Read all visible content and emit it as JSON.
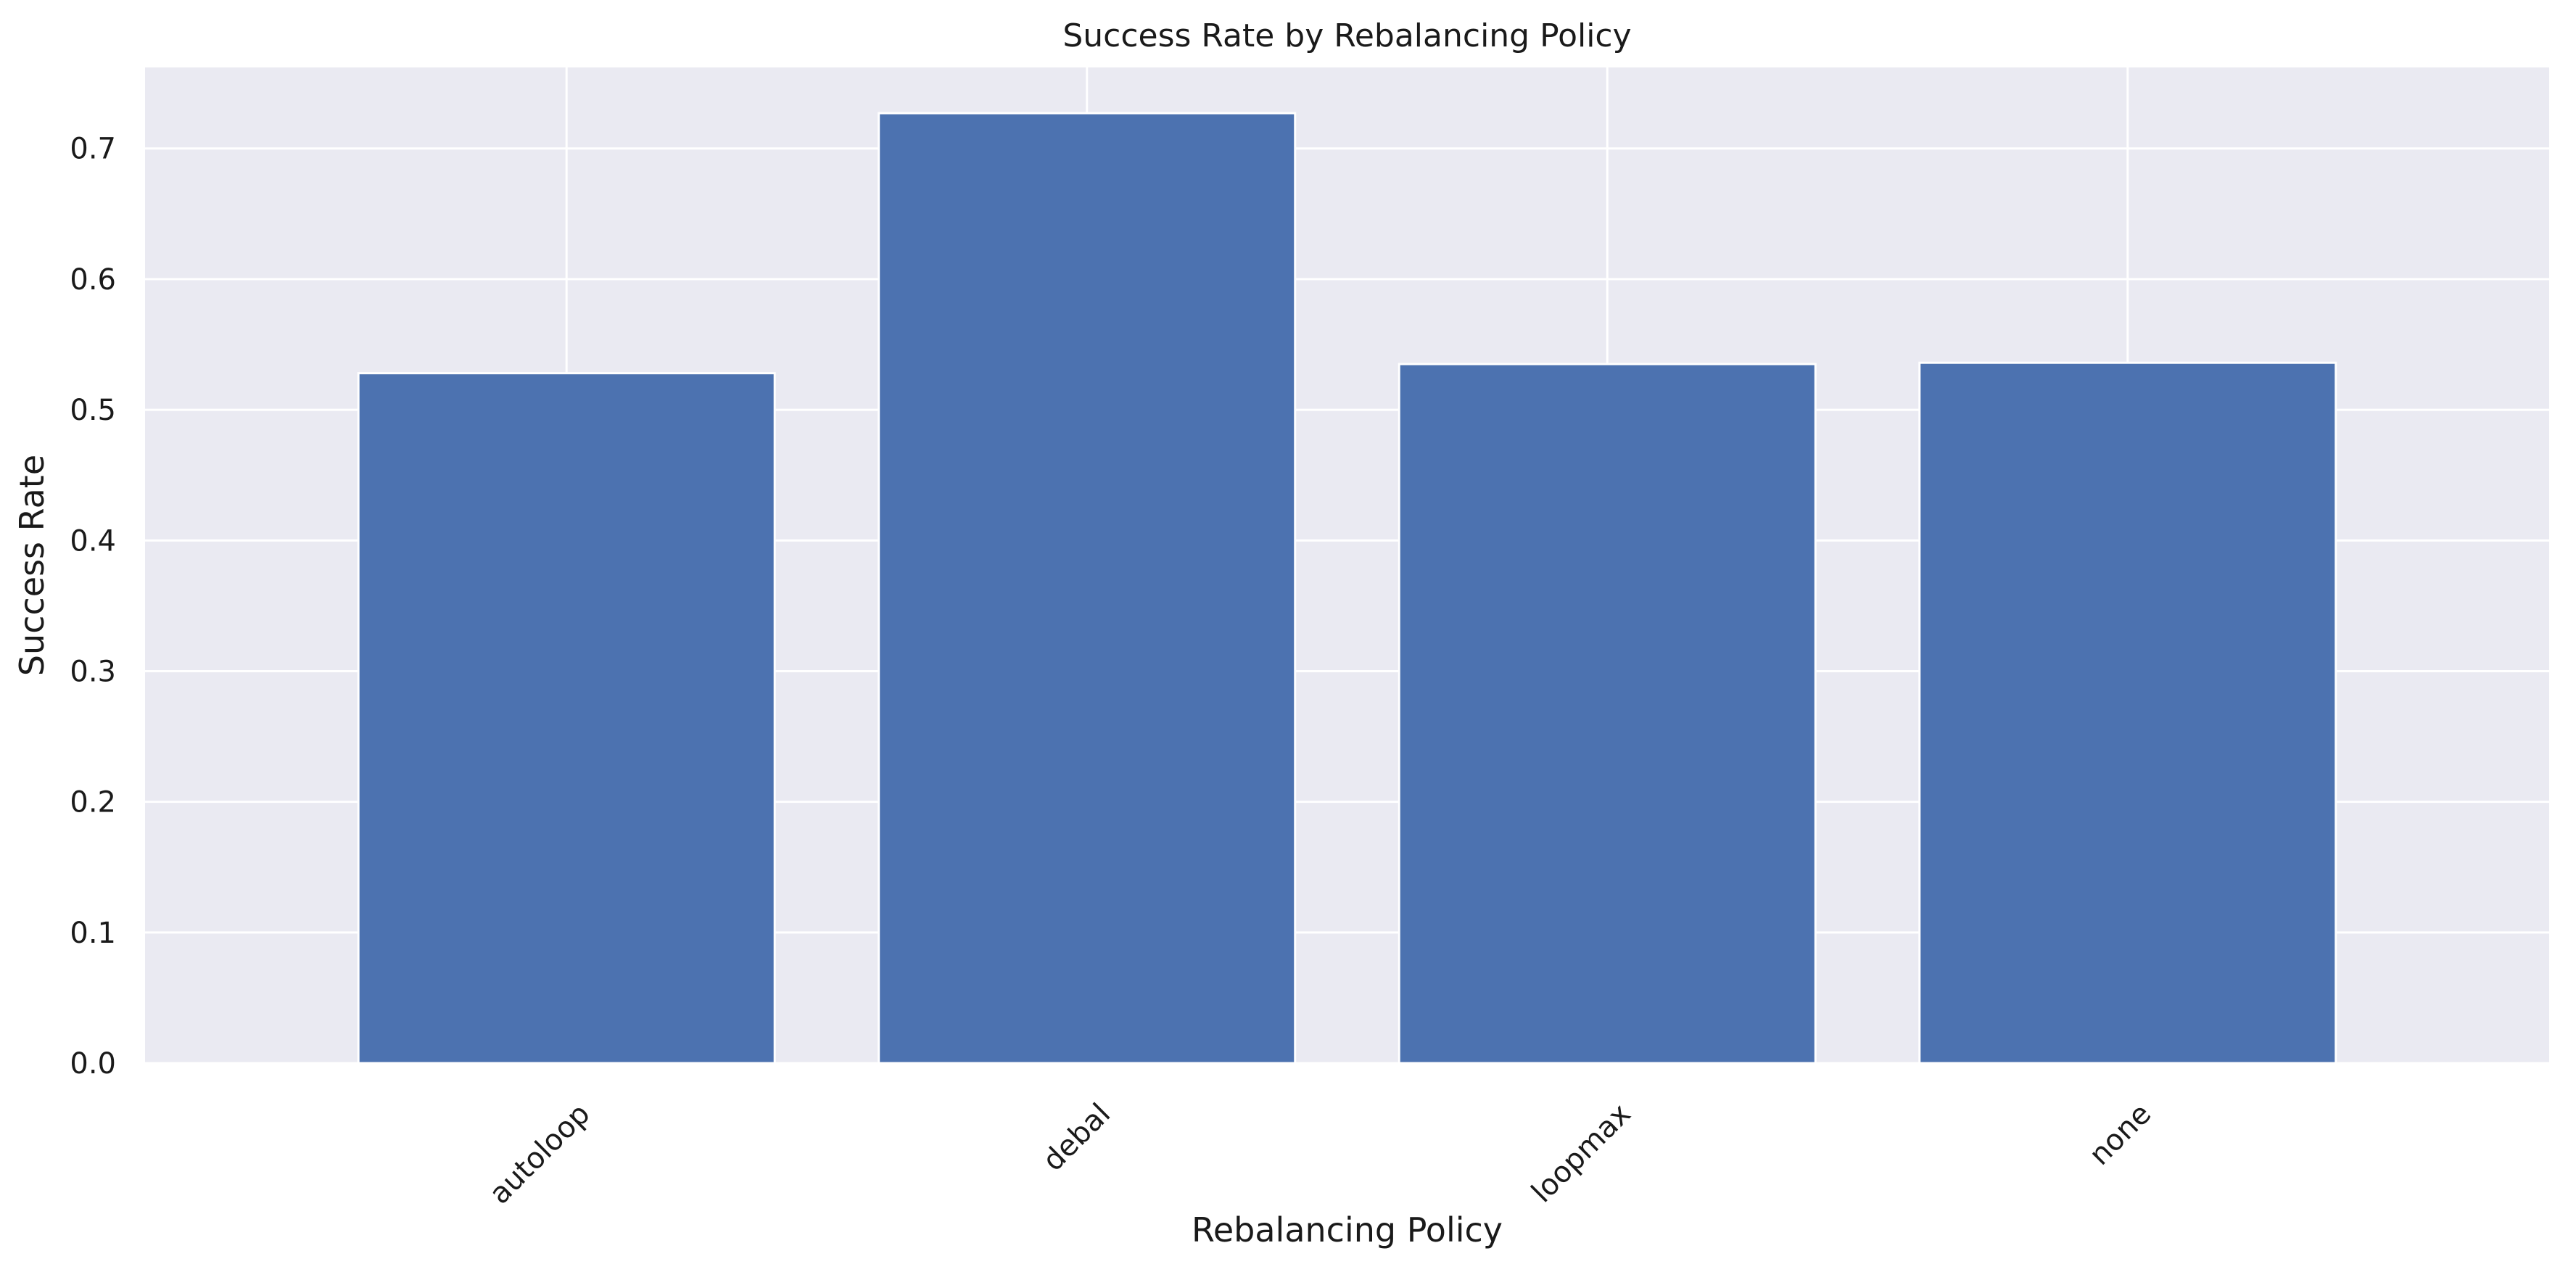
{
  "chart_data": {
    "type": "bar",
    "title": "Success Rate by Rebalancing Policy",
    "xlabel": "Rebalancing Policy",
    "ylabel": "Success Rate",
    "categories": [
      "autoloop",
      "debal",
      "loopmax",
      "none"
    ],
    "values": [
      0.528,
      0.727,
      0.535,
      0.536
    ],
    "ylim": [
      0,
      0.762
    ],
    "yticks": [
      "0.0",
      "0.1",
      "0.2",
      "0.3",
      "0.4",
      "0.5",
      "0.6",
      "0.7"
    ],
    "grid": true,
    "bar_color": "#4c72b0",
    "background_color": "#eaeaf2",
    "grid_color": "#ffffff"
  }
}
